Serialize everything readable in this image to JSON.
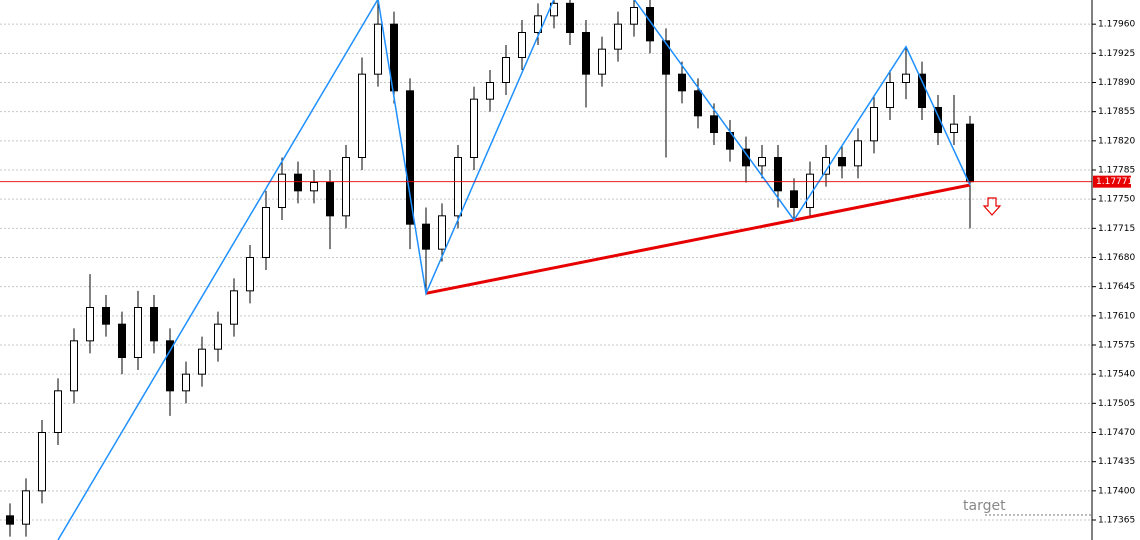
{
  "chart_data": {
    "type": "candlestick",
    "ylim": [
      1.17341,
      1.17989
    ],
    "yticks": [
      {
        "value": 1.17365,
        "label": "1.17365"
      },
      {
        "value": 1.174,
        "label": "1.17400"
      },
      {
        "value": 1.17435,
        "label": "1.17435"
      },
      {
        "value": 1.1747,
        "label": "1.17470"
      },
      {
        "value": 1.17505,
        "label": "1.17505"
      },
      {
        "value": 1.1754,
        "label": "1.17540"
      },
      {
        "value": 1.17575,
        "label": "1.17575"
      },
      {
        "value": 1.1761,
        "label": "1.17610"
      },
      {
        "value": 1.17645,
        "label": "1.17645"
      },
      {
        "value": 1.1768,
        "label": "1.17680"
      },
      {
        "value": 1.17715,
        "label": "1.17715"
      },
      {
        "value": 1.1775,
        "label": "1.17750"
      },
      {
        "value": 1.17785,
        "label": "1.17785"
      },
      {
        "value": 1.1782,
        "label": "1.17820"
      },
      {
        "value": 1.17855,
        "label": "1.17855"
      },
      {
        "value": 1.1789,
        "label": "1.17890"
      },
      {
        "value": 1.17925,
        "label": "1.17925"
      },
      {
        "value": 1.1796,
        "label": "1.17960"
      }
    ],
    "grid": true,
    "up_color": "#ffffff",
    "down_color": "#000000",
    "open": [
      1.1737,
      1.1736,
      1.174,
      1.1747,
      1.1752,
      1.1758,
      1.1762,
      1.176,
      1.1756,
      1.1762,
      1.1758,
      1.1752,
      1.1754,
      1.1757,
      1.176,
      1.1764,
      1.1768,
      1.1774,
      1.1778,
      1.1776,
      1.1777,
      1.1773,
      1.178,
      1.179,
      1.1796,
      1.1788,
      1.1772,
      1.1769,
      1.1773,
      1.178,
      1.1787,
      1.1789,
      1.1792,
      1.1795,
      1.1797,
      1.17985,
      1.1795,
      1.179,
      1.1793,
      1.1796,
      1.1798,
      1.1794,
      1.179,
      1.1788,
      1.1785,
      1.1783,
      1.1781,
      1.1779,
      1.178,
      1.1776,
      1.1774,
      1.1778,
      1.178,
      1.1779,
      1.1782,
      1.1786,
      1.1789,
      1.179,
      1.1786,
      1.1783,
      1.1784
    ],
    "high": [
      1.17385,
      1.17415,
      1.17485,
      1.17535,
      1.17595,
      1.1766,
      1.17635,
      1.17615,
      1.1764,
      1.17635,
      1.17595,
      1.17555,
      1.17585,
      1.17615,
      1.17655,
      1.17695,
      1.1776,
      1.178,
      1.17795,
      1.17785,
      1.17785,
      1.17815,
      1.1792,
      1.1799,
      1.17975,
      1.17895,
      1.1774,
      1.17745,
      1.17815,
      1.17885,
      1.17905,
      1.17935,
      1.17965,
      1.17985,
      1.1799,
      1.17995,
      1.17965,
      1.17945,
      1.17975,
      1.17995,
      1.1799,
      1.17955,
      1.17915,
      1.17895,
      1.17865,
      1.17845,
      1.17825,
      1.17815,
      1.17815,
      1.17775,
      1.17795,
      1.17815,
      1.17815,
      1.17835,
      1.17875,
      1.17905,
      1.17933,
      1.17915,
      1.17875,
      1.17875,
      1.1785
    ],
    "low": [
      1.17345,
      1.17345,
      1.17385,
      1.17455,
      1.17505,
      1.17565,
      1.17585,
      1.1754,
      1.17545,
      1.17565,
      1.1749,
      1.17505,
      1.17525,
      1.17555,
      1.17585,
      1.17625,
      1.17665,
      1.17725,
      1.17745,
      1.17745,
      1.1769,
      1.17715,
      1.17785,
      1.17885,
      1.17865,
      1.1769,
      1.17637,
      1.17675,
      1.17715,
      1.17785,
      1.17855,
      1.17875,
      1.17905,
      1.17935,
      1.17955,
      1.17935,
      1.1786,
      1.17885,
      1.17915,
      1.17945,
      1.17925,
      1.178,
      1.17865,
      1.17835,
      1.17815,
      1.17795,
      1.1777,
      1.17775,
      1.1774,
      1.17725,
      1.1773,
      1.17765,
      1.17775,
      1.17775,
      1.17805,
      1.17845,
      1.1787,
      1.17845,
      1.17815,
      1.17815,
      1.17715
    ],
    "close": [
      1.1736,
      1.174,
      1.1747,
      1.1752,
      1.1758,
      1.1762,
      1.176,
      1.1756,
      1.1762,
      1.1758,
      1.1752,
      1.1754,
      1.1757,
      1.176,
      1.1764,
      1.1768,
      1.1774,
      1.1778,
      1.1776,
      1.1777,
      1.1773,
      1.178,
      1.179,
      1.1796,
      1.1788,
      1.1772,
      1.1769,
      1.1773,
      1.178,
      1.1787,
      1.1789,
      1.1792,
      1.1795,
      1.1797,
      1.17985,
      1.1795,
      1.179,
      1.1793,
      1.1796,
      1.1798,
      1.1794,
      1.179,
      1.1788,
      1.1785,
      1.1783,
      1.1781,
      1.1779,
      1.178,
      1.1776,
      1.1774,
      1.1778,
      1.178,
      1.1779,
      1.1782,
      1.1786,
      1.1789,
      1.179,
      1.1786,
      1.1783,
      1.1784,
      1.17771
    ],
    "zigzag": {
      "color": "#1e90ff",
      "x": [
        3,
        23,
        26,
        34,
        39,
        49,
        56,
        60
      ],
      "values": [
        1.17341,
        1.1799,
        1.17637,
        1.1799,
        1.1799,
        1.17725,
        1.17933,
        1.17767
      ]
    },
    "trendline": {
      "color": "#e60000",
      "x": [
        26,
        60
      ],
      "values": [
        1.17637,
        1.17767
      ]
    },
    "current_price": 1.17771,
    "target": {
      "label": "target",
      "value": 1.17371
    }
  }
}
